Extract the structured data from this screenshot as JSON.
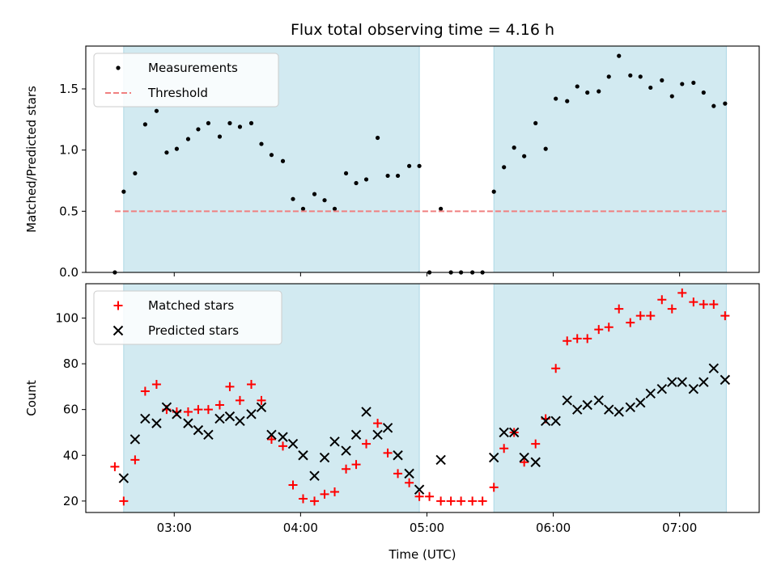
{
  "chart_data": {
    "title": "Flux total observing time = 4.16 h",
    "xlabel": "Time (UTC)",
    "x_axis": {
      "unit": "hours UTC",
      "xlim": [
        2.3,
        7.63
      ],
      "ticks": [
        3,
        4,
        5,
        6,
        7
      ],
      "tick_labels": [
        "03:00",
        "04:00",
        "05:00",
        "06:00",
        "07:00"
      ]
    },
    "observing_windows": {
      "color": "#add8e6",
      "spans": [
        [
          2.6,
          4.94
        ],
        [
          5.53,
          7.37
        ]
      ]
    },
    "panels": [
      {
        "id": "ratio",
        "type": "scatter",
        "ylabel": "Matched/Predicted stars",
        "ylim": [
          0,
          1.85
        ],
        "yticks": [
          0.0,
          0.5,
          1.0,
          1.5
        ],
        "ytick_labels": [
          "0.0",
          "0.5",
          "1.0",
          "1.5"
        ],
        "legend": {
          "position": "upper left",
          "entries": [
            "Measurements",
            "Threshold"
          ]
        },
        "series": [
          {
            "name": "Measurements",
            "marker": "dot",
            "color": "#000000",
            "points": [
              [
                2.53,
                0.0
              ],
              [
                2.6,
                0.66
              ],
              [
                2.69,
                0.81
              ],
              [
                2.77,
                1.21
              ],
              [
                2.86,
                1.32
              ],
              [
                2.94,
                0.98
              ],
              [
                3.02,
                1.01
              ],
              [
                3.11,
                1.09
              ],
              [
                3.19,
                1.17
              ],
              [
                3.27,
                1.22
              ],
              [
                3.36,
                1.11
              ],
              [
                3.44,
                1.22
              ],
              [
                3.52,
                1.19
              ],
              [
                3.61,
                1.22
              ],
              [
                3.69,
                1.05
              ],
              [
                3.77,
                0.96
              ],
              [
                3.86,
                0.91
              ],
              [
                3.94,
                0.6
              ],
              [
                4.02,
                0.52
              ],
              [
                4.11,
                0.64
              ],
              [
                4.19,
                0.59
              ],
              [
                4.27,
                0.52
              ],
              [
                4.36,
                0.81
              ],
              [
                4.44,
                0.73
              ],
              [
                4.52,
                0.76
              ],
              [
                4.61,
                1.1
              ],
              [
                4.69,
                0.79
              ],
              [
                4.77,
                0.79
              ],
              [
                4.86,
                0.87
              ],
              [
                4.94,
                0.87
              ],
              [
                5.02,
                0.0
              ],
              [
                5.11,
                0.52
              ],
              [
                5.19,
                0.0
              ],
              [
                5.27,
                0.0
              ],
              [
                5.36,
                0.0
              ],
              [
                5.44,
                0.0
              ],
              [
                5.53,
                0.66
              ],
              [
                5.61,
                0.86
              ],
              [
                5.69,
                1.02
              ],
              [
                5.77,
                0.95
              ],
              [
                5.86,
                1.22
              ],
              [
                5.94,
                1.01
              ],
              [
                6.02,
                1.42
              ],
              [
                6.11,
                1.4
              ],
              [
                6.19,
                1.52
              ],
              [
                6.27,
                1.47
              ],
              [
                6.36,
                1.48
              ],
              [
                6.44,
                1.6
              ],
              [
                6.52,
                1.77
              ],
              [
                6.61,
                1.61
              ],
              [
                6.69,
                1.6
              ],
              [
                6.77,
                1.51
              ],
              [
                6.86,
                1.57
              ],
              [
                6.94,
                1.44
              ],
              [
                7.02,
                1.54
              ],
              [
                7.11,
                1.55
              ],
              [
                7.19,
                1.47
              ],
              [
                7.27,
                1.36
              ],
              [
                7.36,
                1.38
              ]
            ]
          },
          {
            "name": "Threshold",
            "marker": "dashed-line",
            "color": "#f08080",
            "value": 0.5,
            "x_range": [
              2.53,
              7.37
            ]
          }
        ]
      },
      {
        "id": "count",
        "type": "scatter",
        "ylabel": "Count",
        "ylim": [
          15,
          115
        ],
        "yticks": [
          20,
          40,
          60,
          80,
          100
        ],
        "ytick_labels": [
          "20",
          "40",
          "60",
          "80",
          "100"
        ],
        "legend": {
          "position": "upper left",
          "entries": [
            "Matched stars",
            "Predicted stars"
          ]
        },
        "series": [
          {
            "name": "Matched stars",
            "marker": "plus",
            "color": "#ff0000",
            "points": [
              [
                2.53,
                35
              ],
              [
                2.6,
                20
              ],
              [
                2.69,
                38
              ],
              [
                2.77,
                68
              ],
              [
                2.86,
                71
              ],
              [
                2.94,
                60
              ],
              [
                3.02,
                59
              ],
              [
                3.11,
                59
              ],
              [
                3.19,
                60
              ],
              [
                3.27,
                60
              ],
              [
                3.36,
                62
              ],
              [
                3.44,
                70
              ],
              [
                3.52,
                64
              ],
              [
                3.61,
                71
              ],
              [
                3.69,
                64
              ],
              [
                3.77,
                47
              ],
              [
                3.86,
                44
              ],
              [
                3.94,
                27
              ],
              [
                4.02,
                21
              ],
              [
                4.11,
                20
              ],
              [
                4.19,
                23
              ],
              [
                4.27,
                24
              ],
              [
                4.36,
                34
              ],
              [
                4.44,
                36
              ],
              [
                4.52,
                45
              ],
              [
                4.61,
                54
              ],
              [
                4.69,
                41
              ],
              [
                4.77,
                32
              ],
              [
                4.86,
                28
              ],
              [
                4.94,
                22
              ],
              [
                5.02,
                22
              ],
              [
                5.11,
                20
              ],
              [
                5.19,
                20
              ],
              [
                5.27,
                20
              ],
              [
                5.36,
                20
              ],
              [
                5.44,
                20
              ],
              [
                5.53,
                26
              ],
              [
                5.61,
                43
              ],
              [
                5.69,
                50
              ],
              [
                5.77,
                37
              ],
              [
                5.86,
                45
              ],
              [
                5.94,
                56
              ],
              [
                6.02,
                78
              ],
              [
                6.11,
                90
              ],
              [
                6.19,
                91
              ],
              [
                6.27,
                91
              ],
              [
                6.36,
                95
              ],
              [
                6.44,
                96
              ],
              [
                6.52,
                104
              ],
              [
                6.61,
                98
              ],
              [
                6.69,
                101
              ],
              [
                6.77,
                101
              ],
              [
                6.86,
                108
              ],
              [
                6.94,
                104
              ],
              [
                7.02,
                111
              ],
              [
                7.11,
                107
              ],
              [
                7.19,
                106
              ],
              [
                7.27,
                106
              ],
              [
                7.36,
                101
              ]
            ]
          },
          {
            "name": "Predicted stars",
            "marker": "x",
            "color": "#000000",
            "points": [
              [
                2.6,
                30
              ],
              [
                2.69,
                47
              ],
              [
                2.77,
                56
              ],
              [
                2.86,
                54
              ],
              [
                2.94,
                61
              ],
              [
                3.02,
                58
              ],
              [
                3.11,
                54
              ],
              [
                3.19,
                51
              ],
              [
                3.27,
                49
              ],
              [
                3.36,
                56
              ],
              [
                3.44,
                57
              ],
              [
                3.52,
                55
              ],
              [
                3.61,
                58
              ],
              [
                3.69,
                61
              ],
              [
                3.77,
                49
              ],
              [
                3.86,
                48
              ],
              [
                3.94,
                45
              ],
              [
                4.02,
                40
              ],
              [
                4.11,
                31
              ],
              [
                4.19,
                39
              ],
              [
                4.27,
                46
              ],
              [
                4.36,
                42
              ],
              [
                4.44,
                49
              ],
              [
                4.52,
                59
              ],
              [
                4.61,
                49
              ],
              [
                4.69,
                52
              ],
              [
                4.77,
                40
              ],
              [
                4.86,
                32
              ],
              [
                4.94,
                25
              ],
              [
                5.11,
                38
              ],
              [
                5.53,
                39
              ],
              [
                5.61,
                50
              ],
              [
                5.69,
                50
              ],
              [
                5.77,
                39
              ],
              [
                5.86,
                37
              ],
              [
                5.94,
                55
              ],
              [
                6.02,
                55
              ],
              [
                6.11,
                64
              ],
              [
                6.19,
                60
              ],
              [
                6.27,
                62
              ],
              [
                6.36,
                64
              ],
              [
                6.44,
                60
              ],
              [
                6.52,
                59
              ],
              [
                6.61,
                61
              ],
              [
                6.69,
                63
              ],
              [
                6.77,
                67
              ],
              [
                6.86,
                69
              ],
              [
                6.94,
                72
              ],
              [
                7.02,
                72
              ],
              [
                7.11,
                69
              ],
              [
                7.19,
                72
              ],
              [
                7.27,
                78
              ],
              [
                7.36,
                73
              ]
            ]
          }
        ]
      }
    ]
  }
}
